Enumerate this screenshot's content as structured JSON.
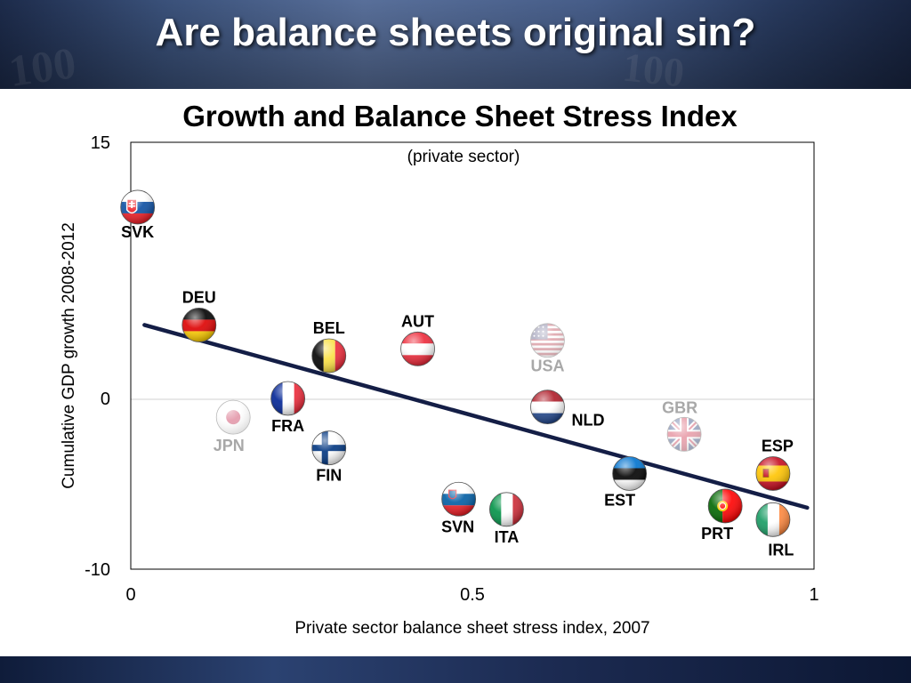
{
  "slide": {
    "title": "Are balance sheets original sin?"
  },
  "chart_data": {
    "type": "scatter",
    "title": "Growth and Balance Sheet Stress Index",
    "subtitle": "(private sector)",
    "xlabel": "Private sector balance sheet stress index, 2007",
    "ylabel": "Cumulative GDP growth 2008-2012",
    "xlim": [
      0,
      1
    ],
    "ylim": [
      -10,
      15
    ],
    "x_ticks": [
      {
        "value": 0,
        "label": "0"
      },
      {
        "value": 0.5,
        "label": "0.5"
      },
      {
        "value": 1,
        "label": "1"
      }
    ],
    "y_ticks": [
      {
        "value": 15,
        "label": "15"
      },
      {
        "value": 0,
        "label": "0"
      },
      {
        "value": -10,
        "label": "-10"
      }
    ],
    "zero_line": true,
    "points": [
      {
        "label": "SVK",
        "x": 0.01,
        "y": 11.2,
        "flag": "svk",
        "faded": false
      },
      {
        "label": "DEU",
        "x": 0.1,
        "y": 4.3,
        "flag": "deu",
        "faded": false
      },
      {
        "label": "BEL",
        "x": 0.29,
        "y": 2.5,
        "flag": "bel",
        "faded": false
      },
      {
        "label": "AUT",
        "x": 0.42,
        "y": 2.9,
        "flag": "aut",
        "faded": false
      },
      {
        "label": "USA",
        "x": 0.61,
        "y": 3.4,
        "flag": "usa",
        "faded": true
      },
      {
        "label": "JPN",
        "x": 0.15,
        "y": -1.1,
        "flag": "jpn",
        "faded": true
      },
      {
        "label": "FRA",
        "x": 0.23,
        "y": 0.0,
        "flag": "fra",
        "faded": false
      },
      {
        "label": "FIN",
        "x": 0.29,
        "y": -2.9,
        "flag": "fin",
        "faded": false
      },
      {
        "label": "NLD",
        "x": 0.61,
        "y": -0.5,
        "flag": "nld",
        "faded": false
      },
      {
        "label": "GBR",
        "x": 0.81,
        "y": -2.1,
        "flag": "gbr",
        "faded": true
      },
      {
        "label": "ESP",
        "x": 0.94,
        "y": -4.4,
        "flag": "esp",
        "faded": false
      },
      {
        "label": "EST",
        "x": 0.73,
        "y": -4.4,
        "flag": "est",
        "faded": false
      },
      {
        "label": "SVN",
        "x": 0.48,
        "y": -5.9,
        "flag": "svn",
        "faded": false
      },
      {
        "label": "ITA",
        "x": 0.55,
        "y": -6.5,
        "flag": "ita",
        "faded": false
      },
      {
        "label": "PRT",
        "x": 0.87,
        "y": -6.3,
        "flag": "prt",
        "faded": false
      },
      {
        "label": "IRL",
        "x": 0.94,
        "y": -7.1,
        "flag": "irl",
        "faded": false
      }
    ],
    "trend_line": {
      "x": [
        0.02,
        0.99
      ],
      "y": [
        4.3,
        -6.4
      ]
    },
    "colors": {
      "trend": "#141e46",
      "axis": "#000000",
      "zero_line": "#d0d0d0",
      "label": "#000000",
      "faded_label": "#a8a8a8"
    }
  }
}
